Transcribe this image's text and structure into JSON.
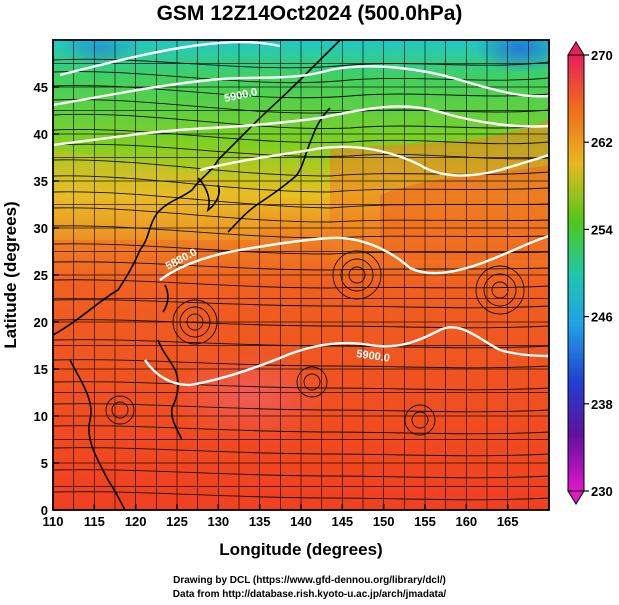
{
  "title": "GSM 12Z14Oct2024 (500.0hPa)",
  "x_axis": {
    "label": "Longitude (degrees)",
    "range": [
      110,
      170
    ],
    "ticks": [
      110,
      115,
      120,
      125,
      130,
      135,
      140,
      145,
      150,
      155,
      160,
      165
    ],
    "tick_labels": [
      "110",
      "115",
      "120",
      "125",
      "130",
      "135",
      "140",
      "145",
      "150",
      "155",
      "160",
      "165"
    ]
  },
  "y_axis": {
    "label": "Latitude  (degrees)",
    "range": [
      0,
      50
    ],
    "ticks": [
      0,
      5,
      10,
      15,
      20,
      25,
      30,
      35,
      40,
      45
    ],
    "tick_labels": [
      "0",
      "5",
      "10",
      "15",
      "20",
      "25",
      "30",
      "35",
      "40",
      "45"
    ]
  },
  "colorbar": {
    "range": [
      230,
      270
    ],
    "tick_labels": [
      "270",
      "262",
      "254",
      "246",
      "238",
      "230"
    ],
    "colors": [
      "#e8205a",
      "#f07018",
      "#e8b820",
      "#50c818",
      "#20c8a8",
      "#20a0e8",
      "#2040d0",
      "#6010a0",
      "#e018c8"
    ]
  },
  "contour_labels": [
    "5900.0",
    "5880.0",
    "5900.0"
  ],
  "credits": {
    "line1": "Drawing by DCL (https://www.gfd-dennou.org/library/dcl/)",
    "line2": "Data from http://database.rish.kyoto-u.ac.jp/arch/jmadata/"
  }
}
